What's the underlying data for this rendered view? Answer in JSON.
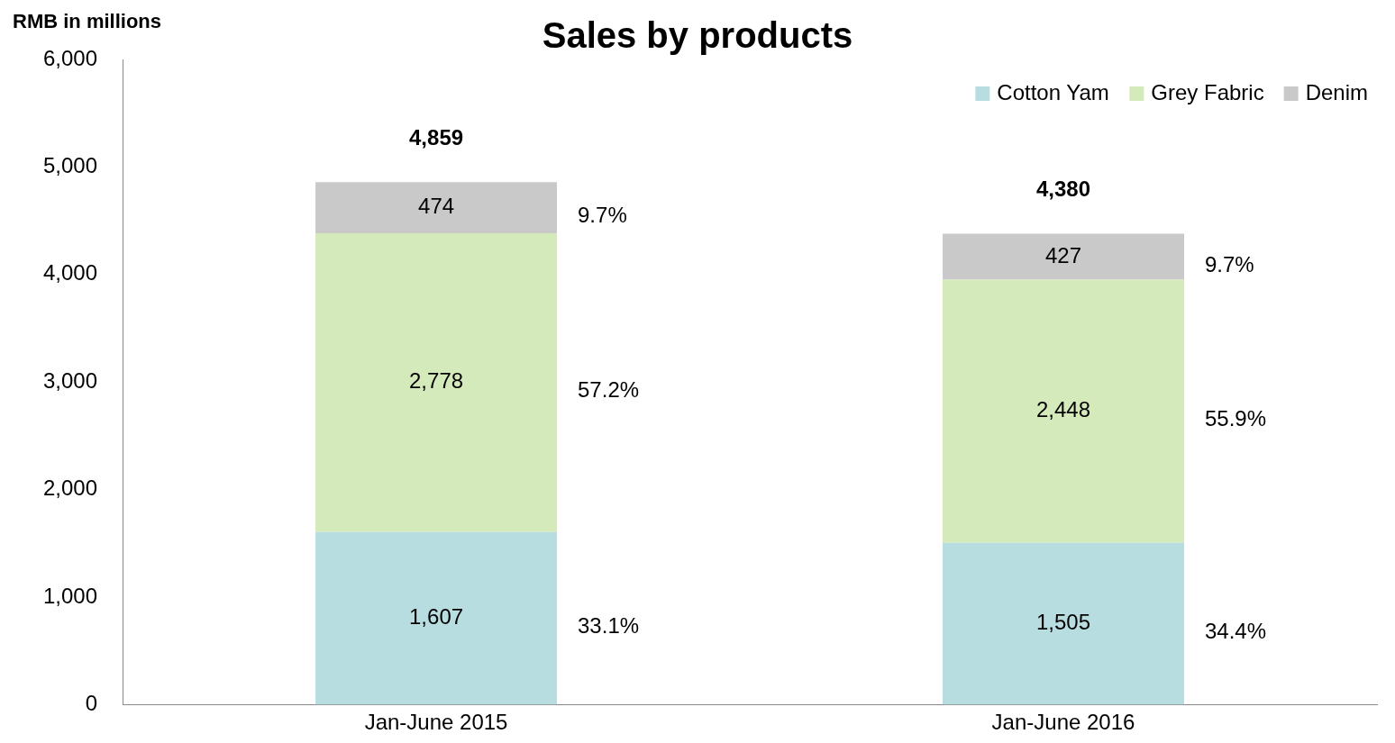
{
  "chart_data": {
    "type": "bar",
    "title": "Sales by products",
    "ylabel": "RMB in millions",
    "categories": [
      "Jan-June 2015",
      "Jan-June 2016"
    ],
    "series": [
      {
        "name": "Cotton Yam",
        "color": "#b7dde1",
        "values": [
          1607,
          1505
        ],
        "value_labels": [
          "1,607",
          "1,505"
        ]
      },
      {
        "name": "Grey Fabric",
        "color": "#d5eaba",
        "values": [
          2778,
          2448
        ],
        "value_labels": [
          "2,778",
          "2,448"
        ]
      },
      {
        "name": "Denim",
        "color": "#c9c9c9",
        "values": [
          474,
          427
        ],
        "value_labels": [
          "474",
          "427"
        ]
      }
    ],
    "stacked": true,
    "totals": [
      "4,859",
      "4,380"
    ],
    "ylim": [
      0,
      6000
    ],
    "yticks": [
      {
        "value": 0,
        "label": "0"
      },
      {
        "value": 1000,
        "label": "1,000"
      },
      {
        "value": 2000,
        "label": "2,000"
      },
      {
        "value": 3000,
        "label": "3,000"
      },
      {
        "value": 4000,
        "label": "4,000"
      },
      {
        "value": 5000,
        "label": "5,000"
      },
      {
        "value": 6000,
        "label": "6,000"
      }
    ],
    "annotations": [
      "33.1%",
      "57.2%",
      "9.7%",
      "34.4%",
      "55.9%",
      "9.7%"
    ],
    "grid": false,
    "legend": "top right"
  }
}
